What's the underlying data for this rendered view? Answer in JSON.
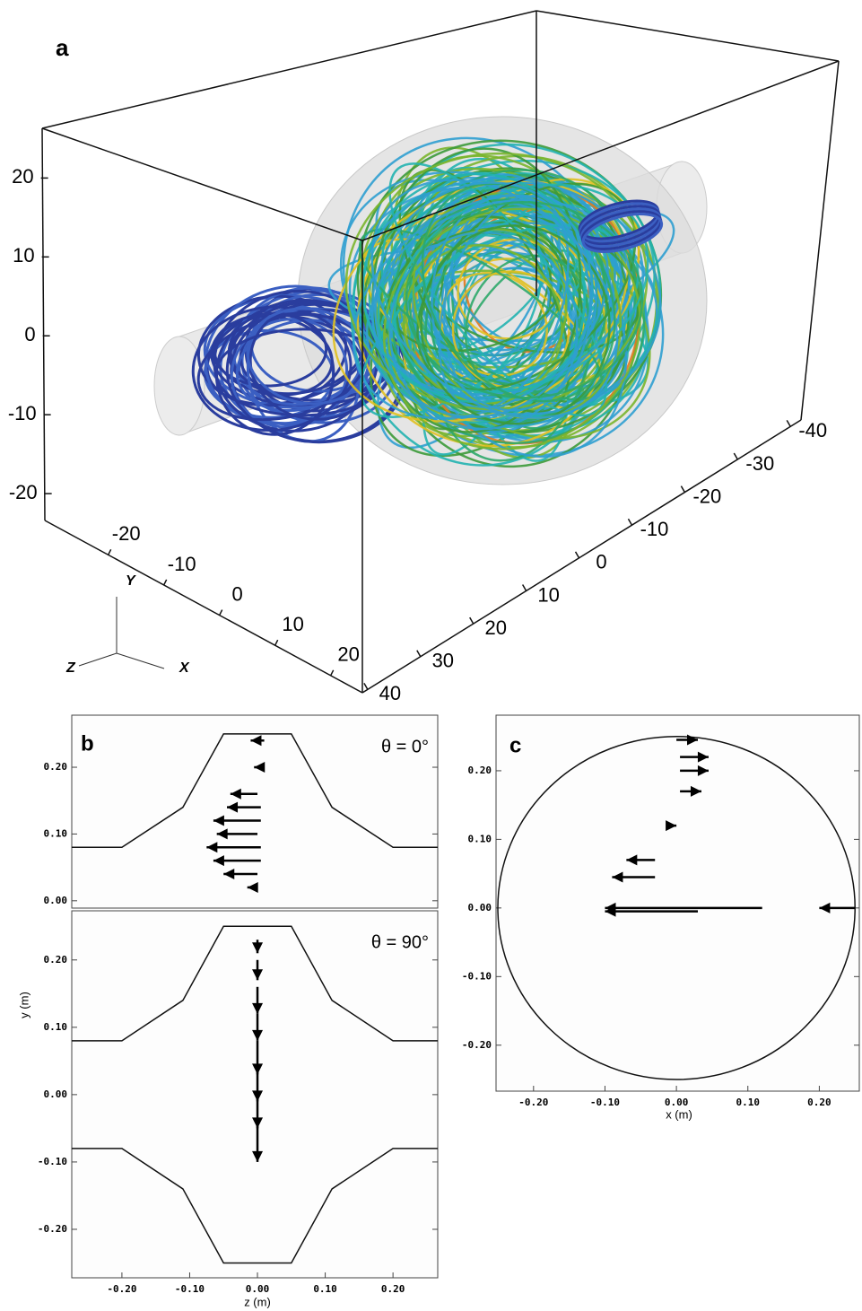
{
  "chart_data": [
    {
      "type": "streamlines3d",
      "panel_label": "a",
      "axis_labels": {
        "x": "X",
        "y": "Y",
        "z": "Z"
      },
      "ylim": [
        -23.4,
        26.3
      ],
      "yticks": [
        20,
        10,
        0,
        -10,
        -20
      ],
      "xlim": [
        -31.4,
        25.7
      ],
      "xticks": [
        -20,
        -10,
        0,
        10,
        20
      ],
      "zlim": [
        41,
        -42
      ],
      "zticks": [
        40,
        30,
        20,
        10,
        0,
        -10,
        -20,
        -30,
        -40
      ]
    },
    {
      "type": "quiver",
      "panel_label": "b",
      "annotation": "θ = 0°",
      "xlim": [
        -0.274,
        0.266
      ],
      "ylim": [
        -0.011,
        0.278
      ],
      "yticks": [
        {
          "value": 0,
          "label": "0.00"
        },
        {
          "value": 0.1,
          "label": "0.10"
        },
        {
          "value": 0.2,
          "label": "0.20"
        }
      ],
      "outlines": [
        {
          "x": [
            -0.274,
            -0.2,
            -0.11,
            -0.05,
            0.05,
            0.11,
            0.2,
            0.266
          ],
          "y": [
            0.08,
            0.08,
            0.14,
            0.25,
            0.25,
            0.14,
            0.08,
            0.08
          ]
        }
      ],
      "arrows": {
        "x": [
          0.01,
          0.005,
          0,
          0.005,
          0.005,
          0,
          0.005,
          0.005,
          0,
          -0.005
        ],
        "y": [
          0.24,
          0.2,
          0.16,
          0.14,
          0.12,
          0.1,
          0.08,
          0.06,
          0.04,
          0.02
        ],
        "u": [
          -0.02,
          -0.01,
          -0.04,
          -0.05,
          -0.07,
          -0.06,
          -0.08,
          -0.07,
          -0.05,
          -0.01
        ],
        "v": [
          0,
          0,
          0,
          0,
          0,
          0,
          0,
          0,
          0,
          0
        ]
      }
    },
    {
      "type": "quiver",
      "annotation": "θ = 90°",
      "xlabel": "z (m)",
      "ylabel": "y (m)",
      "xlim": [
        -0.274,
        0.266
      ],
      "ylim": [
        -0.272,
        0.273
      ],
      "xticks": [
        {
          "value": -0.2,
          "label": "-0.20"
        },
        {
          "value": -0.1,
          "label": "-0.10"
        },
        {
          "value": 0,
          "label": "0.00"
        },
        {
          "value": 0.1,
          "label": "0.10"
        },
        {
          "value": 0.2,
          "label": "0.20"
        }
      ],
      "yticks": [
        {
          "value": -0.2,
          "label": "-0.20"
        },
        {
          "value": -0.1,
          "label": "-0.10"
        },
        {
          "value": 0,
          "label": "0.00"
        },
        {
          "value": 0.1,
          "label": "0.10"
        },
        {
          "value": 0.2,
          "label": "0.20"
        }
      ],
      "outlines": [
        {
          "x": [
            -0.274,
            -0.2,
            -0.11,
            -0.05,
            0.05,
            0.11,
            0.2,
            0.266
          ],
          "y": [
            0.08,
            0.08,
            0.14,
            0.25,
            0.25,
            0.14,
            0.08,
            0.08
          ]
        },
        {
          "x": [
            -0.274,
            -0.2,
            -0.11,
            -0.05,
            0.05,
            0.11,
            0.2,
            0.266
          ],
          "y": [
            -0.08,
            -0.08,
            -0.14,
            -0.25,
            -0.25,
            -0.14,
            -0.08,
            -0.08
          ]
        }
      ],
      "arrows": {
        "x": [
          0,
          0,
          0,
          0,
          0,
          0,
          0,
          0
        ],
        "y": [
          0.23,
          0.2,
          0.16,
          0.12,
          0.08,
          0.04,
          0,
          -0.04
        ],
        "u": [
          0,
          0,
          0,
          0,
          0,
          0,
          0,
          0
        ],
        "v": [
          -0.02,
          -0.03,
          -0.04,
          -0.04,
          -0.05,
          -0.05,
          -0.05,
          -0.06
        ]
      }
    },
    {
      "type": "quiver",
      "panel_label": "c",
      "xlabel": "x (m)",
      "xlim": [
        -0.2525,
        0.256
      ],
      "ylim": [
        -0.267,
        0.281
      ],
      "circle_radius": 0.25,
      "xticks": [
        {
          "value": -0.2,
          "label": "-0.20"
        },
        {
          "value": -0.1,
          "label": "-0.10"
        },
        {
          "value": 0,
          "label": "0.00"
        },
        {
          "value": 0.1,
          "label": "0.10"
        },
        {
          "value": 0.2,
          "label": "0.20"
        }
      ],
      "yticks": [
        {
          "value": -0.2,
          "label": "-0.20"
        },
        {
          "value": -0.1,
          "label": "-0.10"
        },
        {
          "value": 0,
          "label": "0.00"
        },
        {
          "value": 0.1,
          "label": "0.10"
        },
        {
          "value": 0.2,
          "label": "0.20"
        }
      ],
      "arrows": {
        "x": [
          0,
          0.005,
          0.005,
          0.005,
          -0.01,
          -0.03,
          -0.03,
          0.12,
          0.03,
          0.25
        ],
        "y": [
          0.245,
          0.22,
          0.2,
          0.17,
          0.12,
          0.07,
          0.045,
          0,
          -0.005,
          0
        ],
        "u": [
          0.03,
          0.04,
          0.04,
          0.03,
          0.01,
          -0.04,
          -0.06,
          -0.22,
          -0.13,
          -0.05
        ],
        "v": [
          0,
          0,
          0,
          0,
          0,
          0,
          0,
          0,
          0,
          0
        ]
      }
    }
  ]
}
